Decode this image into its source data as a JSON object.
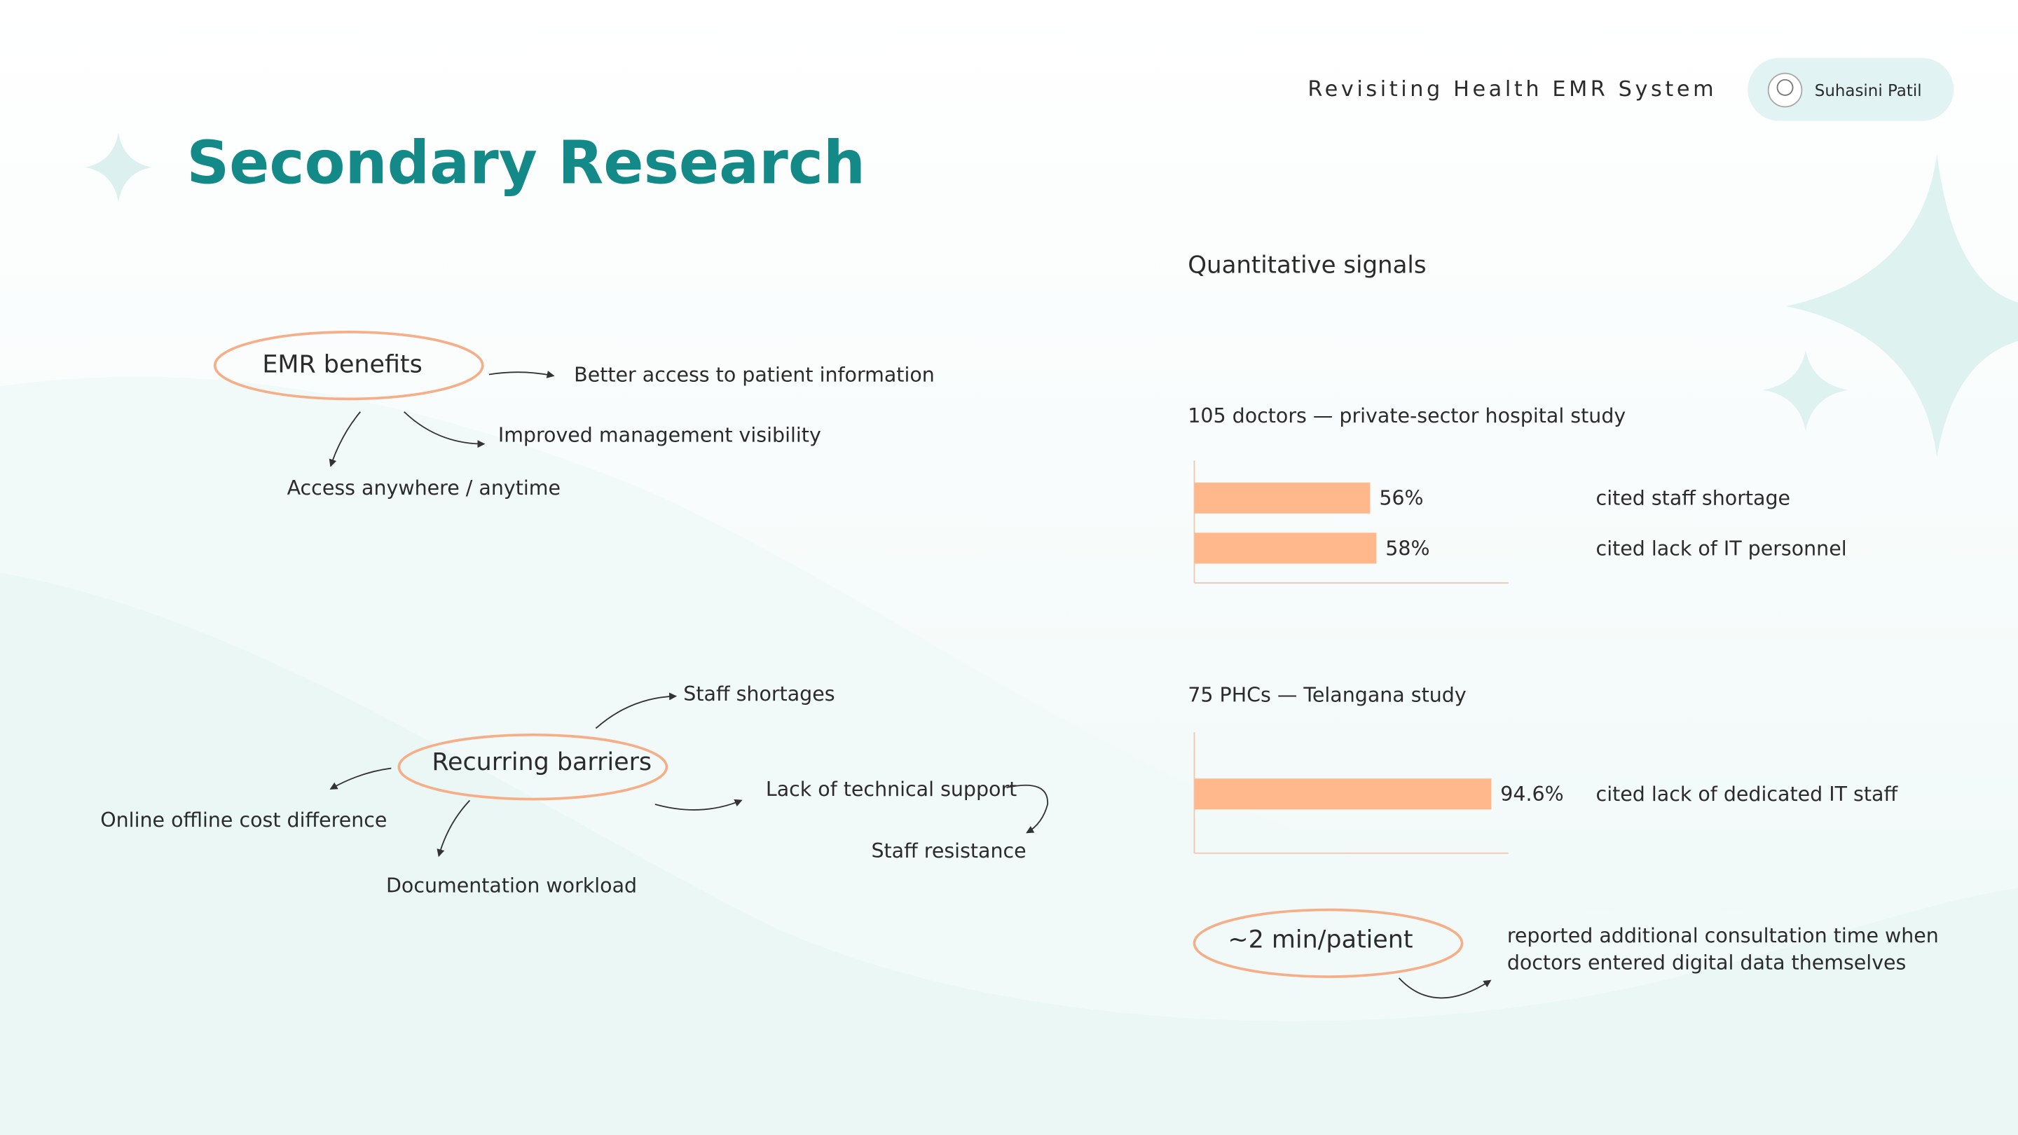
{
  "header": {
    "project": "Revisiting Health EMR System",
    "author": "Suhasini Patil"
  },
  "title": "Secondary Research",
  "benefits": {
    "center": "EMR benefits",
    "branches": [
      "Better access to patient information",
      "Improved management visibility",
      "Access anywhere / anytime"
    ]
  },
  "barriers": {
    "center": "Recurring barriers",
    "branches": [
      "Staff shortages",
      "Online offline cost difference",
      "Documentation workload",
      "Lack of technical support",
      "Staff resistance"
    ]
  },
  "quantitative_heading": "Quantitative signals",
  "chart_data": [
    {
      "type": "bar",
      "title": "105 doctors — private-sector hospital study",
      "categories": [
        "cited staff shortage",
        "cited lack of IT personnel"
      ],
      "values": [
        56,
        58
      ],
      "value_labels": [
        "56%",
        "58%"
      ],
      "xlim": [
        0,
        100
      ],
      "color": "#ffb88c"
    },
    {
      "type": "bar",
      "title": "75 PHCs — Telangana study",
      "categories": [
        "cited lack of dedicated IT staff"
      ],
      "values": [
        94.6
      ],
      "value_labels": [
        "94.6%"
      ],
      "xlim": [
        0,
        100
      ],
      "color": "#ffb88c"
    }
  ],
  "highlight": {
    "value": "~2 min/patient",
    "note": [
      "reported additional consultation time when",
      "doctors entered digital data themselves"
    ]
  }
}
